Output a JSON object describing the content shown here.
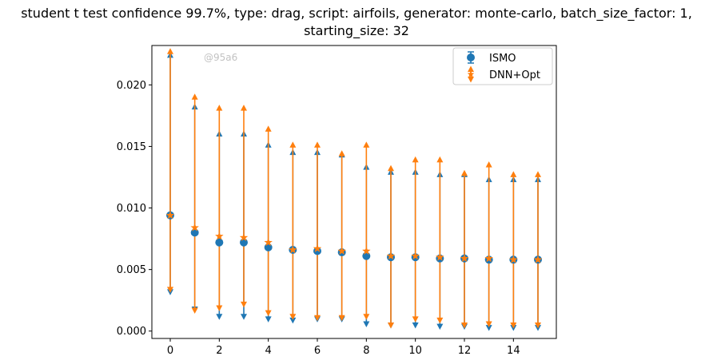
{
  "title_line1": "student t test confidence 99.7%, type: drag, script: airfoils, generator: monte-carlo, batch_size_factor: 1,",
  "title_line2": "starting_size: 32",
  "watermark": "@95a6",
  "colors": {
    "ismo": "#1f77b4",
    "dnn": "#ff7f0e"
  },
  "chart_data": {
    "type": "scatter",
    "title": "student t test confidence 99.7%, type: drag, script: airfoils, generator: monte-carlo, batch_size_factor: 1, starting_size: 32",
    "xlabel": "",
    "ylabel": "",
    "xlim": [
      -0.75,
      15.75
    ],
    "ylim": [
      -0.0006,
      0.0232
    ],
    "xticks": [
      0,
      2,
      4,
      6,
      8,
      10,
      12,
      14
    ],
    "xtick_labels": [
      "0",
      "2",
      "4",
      "6",
      "8",
      "10",
      "12",
      "14"
    ],
    "yticks": [
      0.0,
      0.005,
      0.01,
      0.015,
      0.02
    ],
    "ytick_labels": [
      "0.000",
      "0.005",
      "0.010",
      "0.015",
      "0.020"
    ],
    "legend": "top-right",
    "grid": false,
    "x": [
      0,
      1,
      2,
      3,
      4,
      5,
      6,
      7,
      8,
      9,
      10,
      11,
      12,
      13,
      14,
      15
    ],
    "series": [
      {
        "name": "ISMO",
        "marker": "circle",
        "values": [
          0.0094,
          0.008,
          0.0072,
          0.0072,
          0.0068,
          0.0066,
          0.0065,
          0.0064,
          0.0061,
          0.006,
          0.006,
          0.0059,
          0.0059,
          0.0058,
          0.0058,
          0.0058
        ],
        "lower": [
          0.0032,
          0.0018,
          0.0012,
          0.0012,
          0.001,
          0.0009,
          0.001,
          0.001,
          0.0006,
          0.0005,
          0.0005,
          0.0004,
          0.0004,
          0.0003,
          0.0003,
          0.0003
        ],
        "upper": [
          0.0224,
          0.0182,
          0.016,
          0.016,
          0.0151,
          0.0145,
          0.0145,
          0.0143,
          0.0133,
          0.0129,
          0.0129,
          0.0127,
          0.0127,
          0.0123,
          0.0123,
          0.0123
        ]
      },
      {
        "name": "DNN+Opt",
        "marker": "star",
        "values": [
          0.0094,
          0.0084,
          0.0077,
          0.0076,
          0.0072,
          0.0066,
          0.0067,
          0.0065,
          0.0065,
          0.0061,
          0.0061,
          0.006,
          0.0059,
          0.0059,
          0.0058,
          0.0058
        ],
        "lower": [
          0.0034,
          0.0017,
          0.0019,
          0.0022,
          0.0015,
          0.0012,
          0.0011,
          0.0011,
          0.0012,
          0.0005,
          0.001,
          0.0009,
          0.0005,
          0.0006,
          0.0005,
          0.0005
        ],
        "upper": [
          0.0227,
          0.019,
          0.0181,
          0.0181,
          0.0164,
          0.0151,
          0.0151,
          0.0144,
          0.0151,
          0.0132,
          0.0139,
          0.0139,
          0.0128,
          0.0135,
          0.0127,
          0.0127
        ]
      }
    ]
  }
}
